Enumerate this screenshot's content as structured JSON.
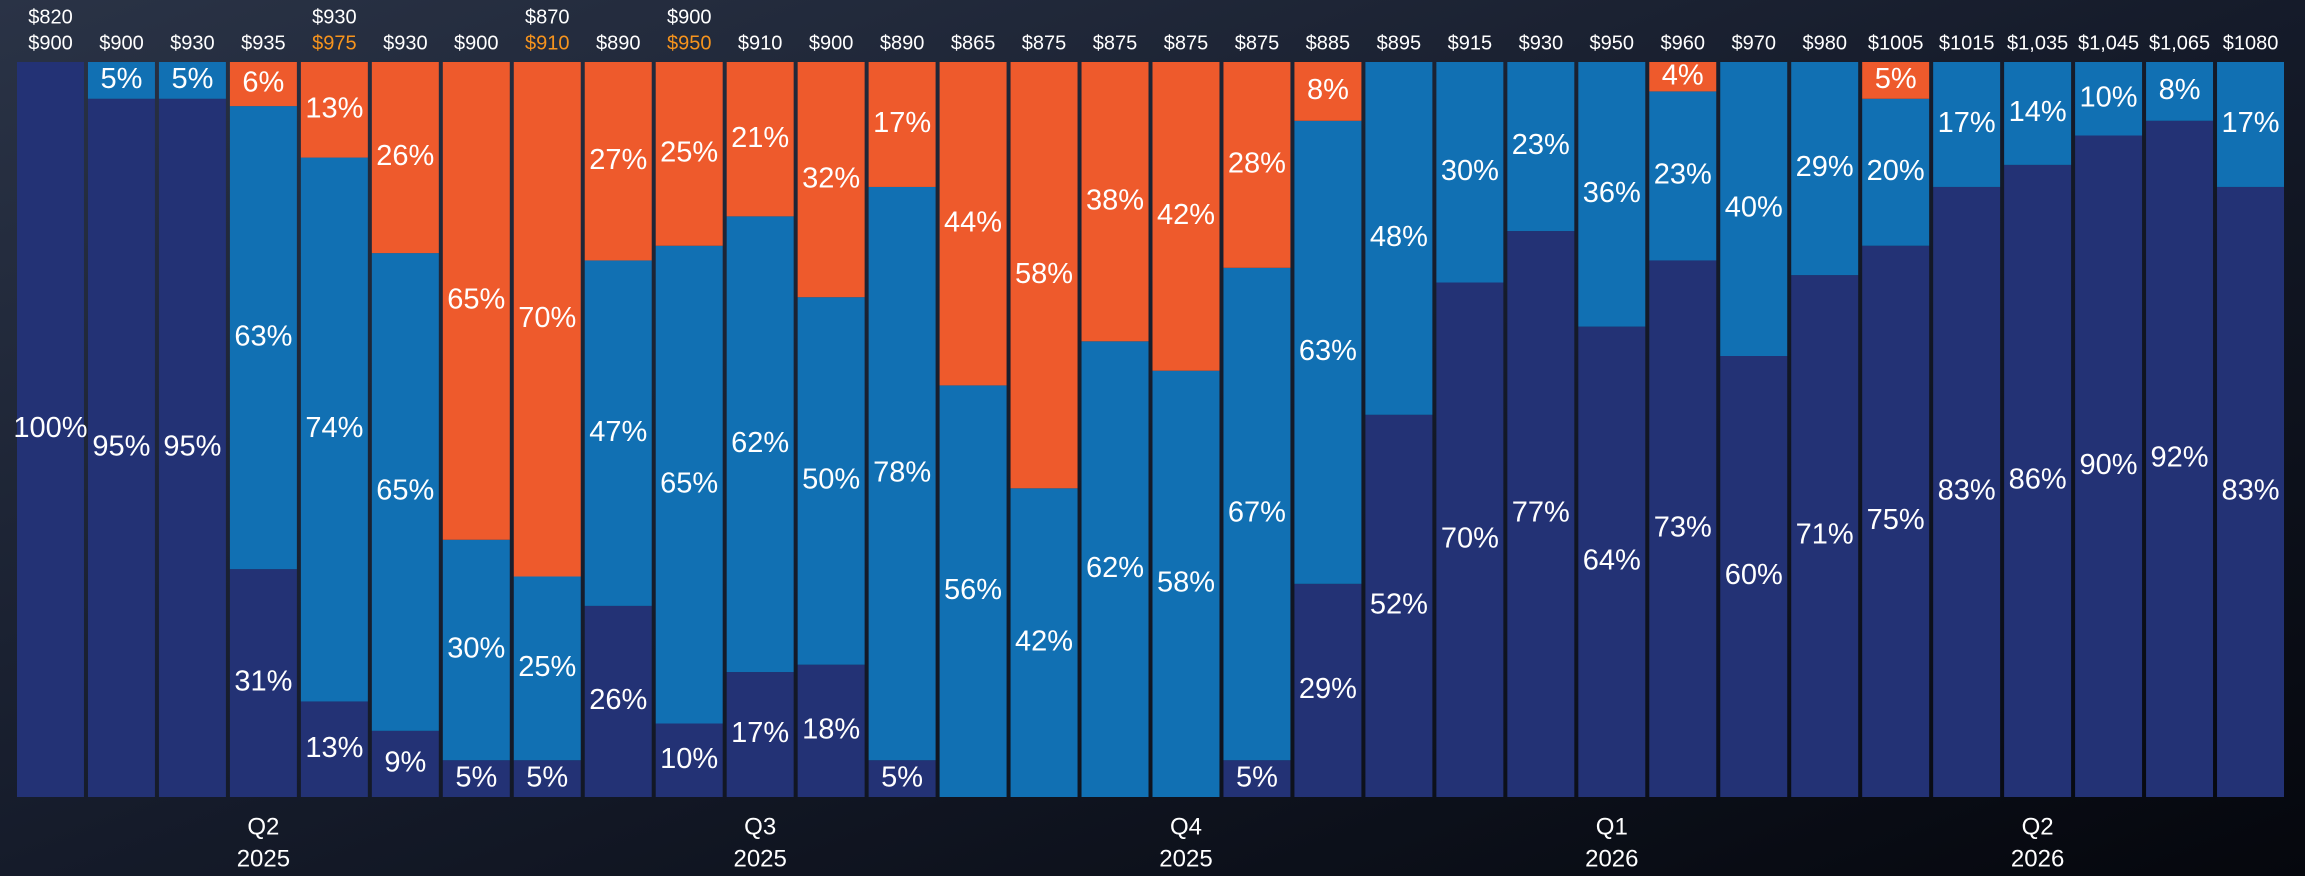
{
  "chart_data": {
    "type": "stacked_bar_100",
    "categories": [
      "$820",
      "$900",
      "$930",
      "$935",
      "$930",
      "$930",
      "$900",
      "$870",
      "$890",
      "$900",
      "$910",
      "$900",
      "$890",
      "$865",
      "$875",
      "$875",
      "$875",
      "$875",
      "$885",
      "$895",
      "$915",
      "$930",
      "$950",
      "$960",
      "$970",
      "$980",
      "$1005",
      "$1015",
      "$1,035",
      "$1,045",
      "$1,065",
      "$1080"
    ],
    "secondary_labels": [
      {
        "text": "$900",
        "color": "#ffffff"
      },
      null,
      null,
      null,
      {
        "text": "$975",
        "color": "#f7941d"
      },
      null,
      null,
      {
        "text": "$910",
        "color": "#f7941d"
      },
      null,
      {
        "text": "$950",
        "color": "#f7941d"
      },
      null,
      null,
      null,
      null,
      null,
      null,
      null,
      null,
      null,
      null,
      null,
      null,
      null,
      null,
      null,
      null,
      null,
      null,
      null,
      null,
      null,
      null
    ],
    "ylim": [
      0,
      100
    ],
    "series": [
      {
        "color": "#233275",
        "values": [
          100,
          95,
          95,
          31,
          13,
          9,
          5,
          5,
          26,
          10,
          17,
          18,
          5,
          0,
          0,
          0,
          0,
          5,
          29,
          52,
          70,
          77,
          64,
          73,
          60,
          71,
          75,
          83,
          86,
          90,
          92,
          83
        ],
        "value_labels": [
          "100%",
          "95%",
          "95%",
          "31%",
          "13%",
          "9%",
          "5%",
          "5%",
          "26%",
          "10%",
          "17%",
          "18%",
          "5%",
          null,
          null,
          null,
          null,
          "5%",
          "29%",
          "52%",
          "70%",
          "77%",
          "64%",
          "73%",
          "60%",
          "71%",
          "75%",
          "83%",
          "86%",
          "90%",
          "92%",
          "83%"
        ]
      },
      {
        "color": "#1170b3",
        "values": [
          0,
          5,
          5,
          63,
          74,
          65,
          30,
          25,
          47,
          65,
          62,
          50,
          78,
          56,
          42,
          62,
          58,
          67,
          63,
          48,
          30,
          23,
          36,
          23,
          40,
          29,
          20,
          17,
          14,
          10,
          8,
          17
        ],
        "value_labels": [
          null,
          "5%",
          "5%",
          "63%",
          "74%",
          "65%",
          "30%",
          "25%",
          "47%",
          "65%",
          "62%",
          "50%",
          "78%",
          "56%",
          "42%",
          "62%",
          "58%",
          "67%",
          "63%",
          "48%",
          "30%",
          "23%",
          "36%",
          "23%",
          "40%",
          "29%",
          "20%",
          "17%",
          "14%",
          "10%",
          "8%",
          "17%"
        ]
      },
      {
        "color": "#ee5a2c",
        "values": [
          0,
          0,
          0,
          6,
          13,
          26,
          65,
          70,
          27,
          25,
          21,
          32,
          17,
          44,
          58,
          38,
          42,
          28,
          8,
          0,
          0,
          0,
          0,
          4,
          0,
          0,
          5,
          0,
          0,
          0,
          0,
          0
        ],
        "value_labels": [
          null,
          null,
          null,
          "6%",
          "13%",
          "26%",
          "65%",
          "70%",
          "27%",
          "25%",
          "21%",
          "32%",
          "17%",
          "44%",
          "58%",
          "38%",
          "42%",
          "28%",
          "8%",
          null,
          null,
          null,
          null,
          "4%",
          null,
          null,
          "5%",
          null,
          null,
          null,
          null,
          null
        ]
      }
    ],
    "periods": [
      {
        "quarter": "Q2",
        "year": "2025",
        "category": 3
      },
      {
        "quarter": "Q3",
        "year": "2025",
        "category": 10
      },
      {
        "quarter": "Q4",
        "year": "2025",
        "category": 16
      },
      {
        "quarter": "Q1",
        "year": "2026",
        "category": 22
      },
      {
        "quarter": "Q2",
        "year": "2026",
        "category": 28
      }
    ]
  }
}
